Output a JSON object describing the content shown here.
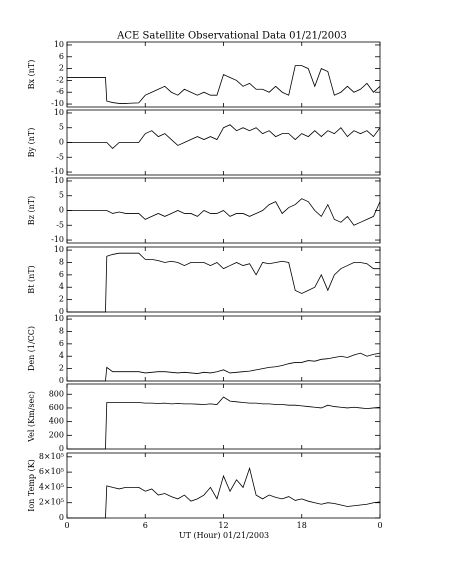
{
  "chart_data": [
    {
      "type": "line",
      "title": "ACE Satellite Observational Data   01/21/2003",
      "ylabel": "Bx (nT)",
      "color": "#000000",
      "ylim": [
        -11,
        11
      ],
      "yticks": [
        -10,
        -6,
        -2,
        2,
        6,
        10
      ],
      "x": [
        0,
        2.95,
        3.05,
        3.5,
        4,
        4.5,
        5,
        5.5,
        6,
        6.5,
        7,
        7.5,
        8,
        8.5,
        9,
        9.5,
        10,
        10.5,
        11,
        11.5,
        12,
        12.5,
        13,
        13.5,
        14,
        14.5,
        15,
        15.5,
        16,
        16.5,
        17,
        17.5,
        18,
        18.5,
        19,
        19.5,
        20,
        20.5,
        21,
        21.5,
        22,
        22.5,
        23,
        23.5,
        24
      ],
      "values": [
        -1,
        -1,
        -9,
        -9.5,
        -9.8,
        -9.8,
        -9.7,
        -9.6,
        -7,
        -6,
        -5,
        -4,
        -6,
        -7,
        -5,
        -6,
        -7,
        -6,
        -7,
        -7,
        0,
        -1,
        -2,
        -4,
        -3,
        -5,
        -5,
        -6,
        -4,
        -6,
        -7,
        3,
        3,
        2,
        -4,
        2,
        1,
        -7,
        -6,
        -4,
        -6,
        -5,
        -3,
        -6,
        -4
      ]
    },
    {
      "type": "line",
      "ylabel": "By (nT)",
      "color": "#000000",
      "ylim": [
        -11,
        11
      ],
      "yticks": [
        -10,
        -5,
        0,
        5,
        10
      ],
      "x": [
        0,
        2.95,
        3.05,
        3.5,
        4,
        4.5,
        5,
        5.5,
        6,
        6.5,
        7,
        7.5,
        8,
        8.5,
        9,
        9.5,
        10,
        10.5,
        11,
        11.5,
        12,
        12.5,
        13,
        13.5,
        14,
        14.5,
        15,
        15.5,
        16,
        16.5,
        17,
        17.5,
        18,
        18.5,
        19,
        19.5,
        20,
        20.5,
        21,
        21.5,
        22,
        22.5,
        23,
        23.5,
        24
      ],
      "values": [
        0,
        0,
        0,
        -2,
        0,
        0,
        0,
        0,
        3,
        4,
        2,
        3,
        1,
        -1,
        0,
        1,
        2,
        1,
        2,
        1,
        5,
        6,
        4,
        5,
        4,
        5,
        3,
        4,
        2,
        3,
        3,
        1,
        3,
        2,
        4,
        2,
        4,
        3,
        5,
        2,
        4,
        3,
        4,
        2,
        5
      ]
    },
    {
      "type": "line",
      "ylabel": "Bz (nT)",
      "color": "#000000",
      "ylim": [
        -11,
        11
      ],
      "yticks": [
        -10,
        -5,
        0,
        5,
        10
      ],
      "x": [
        0,
        2.95,
        3.05,
        3.5,
        4,
        4.5,
        5,
        5.5,
        6,
        6.5,
        7,
        7.5,
        8,
        8.5,
        9,
        9.5,
        10,
        10.5,
        11,
        11.5,
        12,
        12.5,
        13,
        13.5,
        14,
        14.5,
        15,
        15.5,
        16,
        16.5,
        17,
        17.5,
        18,
        18.5,
        19,
        19.5,
        20,
        20.5,
        21,
        21.5,
        22,
        22.5,
        23,
        23.5,
        24
      ],
      "values": [
        0,
        0,
        0,
        -1,
        -0.5,
        -1,
        -1,
        -1,
        -3,
        -2,
        -1,
        -2,
        -1,
        0,
        -1,
        -1,
        -2,
        0,
        -1,
        -1,
        0,
        -2,
        -1,
        -1,
        -2,
        -1,
        0,
        2,
        3,
        -1,
        1,
        2,
        4,
        3,
        0,
        -2,
        2,
        -3,
        -4,
        -2,
        -5,
        -4,
        -3,
        -2,
        3
      ]
    },
    {
      "type": "line",
      "ylabel": "Bt (nT)",
      "color": "#000000",
      "ylim": [
        0,
        10.5
      ],
      "yticks": [
        0,
        2,
        4,
        6,
        8,
        10
      ],
      "x": [
        0,
        2.95,
        3.05,
        3.5,
        4,
        4.5,
        5,
        5.5,
        6,
        6.5,
        7,
        7.5,
        8,
        8.5,
        9,
        9.5,
        10,
        10.5,
        11,
        11.5,
        12,
        12.5,
        13,
        13.5,
        14,
        14.5,
        15,
        15.5,
        16,
        16.5,
        17,
        17.5,
        18,
        18.5,
        19,
        19.5,
        20,
        20.5,
        21,
        21.5,
        22,
        22.5,
        23,
        23.5,
        24
      ],
      "values": [
        0,
        0,
        9,
        9.3,
        9.5,
        9.5,
        9.5,
        9.5,
        8.5,
        8.5,
        8.3,
        8,
        8.2,
        8,
        7.5,
        8,
        8,
        8,
        7.5,
        8,
        7,
        7.5,
        8,
        7.5,
        7.8,
        6,
        8,
        7.8,
        8,
        8.2,
        8,
        3.5,
        3,
        3.5,
        4,
        6,
        3.5,
        6,
        7,
        7.5,
        8,
        8,
        7.8,
        7,
        7
      ]
    },
    {
      "type": "line",
      "ylabel": "Den (1/CC)",
      "color": "#000000",
      "ylim": [
        0,
        10.5
      ],
      "yticks": [
        0,
        2,
        4,
        6,
        8,
        10
      ],
      "x": [
        0,
        2.95,
        3.05,
        3.5,
        4,
        4.5,
        5,
        5.5,
        6,
        6.5,
        7,
        7.5,
        8,
        8.5,
        9,
        9.5,
        10,
        10.5,
        11,
        11.5,
        12,
        12.5,
        13,
        13.5,
        14,
        14.5,
        15,
        15.5,
        16,
        16.5,
        17,
        17.5,
        18,
        18.5,
        19,
        19.5,
        20,
        20.5,
        21,
        21.5,
        22,
        22.5,
        23,
        23.5,
        24
      ],
      "values": [
        0,
        0,
        2.2,
        1.5,
        1.5,
        1.5,
        1.5,
        1.5,
        1.3,
        1.4,
        1.5,
        1.5,
        1.4,
        1.3,
        1.4,
        1.3,
        1.2,
        1.4,
        1.3,
        1.5,
        1.8,
        1.3,
        1.4,
        1.5,
        1.6,
        1.8,
        2,
        2.2,
        2.3,
        2.5,
        2.8,
        3,
        3,
        3.3,
        3.2,
        3.5,
        3.6,
        3.8,
        4,
        3.8,
        4.2,
        4.5,
        4,
        4.3,
        4.5
      ]
    },
    {
      "type": "line",
      "ylabel": "Vel (Km/sec)",
      "color": "#000000",
      "ylim": [
        0,
        950
      ],
      "yticks": [
        0,
        200,
        400,
        600,
        800
      ],
      "x": [
        0,
        2.95,
        3.05,
        3.5,
        4,
        4.5,
        5,
        5.5,
        6,
        6.5,
        7,
        7.5,
        8,
        8.5,
        9,
        9.5,
        10,
        10.5,
        11,
        11.5,
        12,
        12.5,
        13,
        13.5,
        14,
        14.5,
        15,
        15.5,
        16,
        16.5,
        17,
        17.5,
        18,
        18.5,
        19,
        19.5,
        20,
        20.5,
        21,
        21.5,
        22,
        22.5,
        23,
        23.5,
        24
      ],
      "values": [
        0,
        0,
        680,
        680,
        680,
        680,
        680,
        680,
        670,
        670,
        665,
        670,
        660,
        665,
        660,
        660,
        655,
        650,
        660,
        650,
        760,
        700,
        690,
        680,
        670,
        670,
        660,
        660,
        650,
        650,
        640,
        640,
        630,
        620,
        610,
        600,
        640,
        620,
        610,
        600,
        610,
        600,
        590,
        600,
        610
      ]
    },
    {
      "type": "line",
      "ylabel": "Ion Temp (K)",
      "xlabel": "UT (Hour)   01/21/2003",
      "color": "#000000",
      "xlim": [
        0,
        24
      ],
      "xticks": [
        0,
        6,
        12,
        18,
        {
          "value": 24,
          "label": "0"
        }
      ],
      "ylim": [
        0,
        850000
      ],
      "yticks": [
        0,
        {
          "value": 200000,
          "label": "2×10⁵"
        },
        {
          "value": 400000,
          "label": "4×10⁵"
        },
        {
          "value": 600000,
          "label": "6×10⁵"
        },
        {
          "value": 800000,
          "label": "8×10⁵"
        }
      ],
      "x": [
        0,
        2.95,
        3.05,
        3.5,
        4,
        4.5,
        5,
        5.5,
        6,
        6.5,
        7,
        7.5,
        8,
        8.5,
        9,
        9.5,
        10,
        10.5,
        11,
        11.5,
        12,
        12.5,
        13,
        13.5,
        14,
        14.5,
        15,
        15.5,
        16,
        16.5,
        17,
        17.5,
        18,
        18.5,
        19,
        19.5,
        20,
        20.5,
        21,
        21.5,
        22,
        22.5,
        23,
        23.5,
        24
      ],
      "values": [
        0,
        0,
        420000,
        400000,
        380000,
        400000,
        400000,
        400000,
        350000,
        380000,
        300000,
        320000,
        280000,
        250000,
        300000,
        220000,
        250000,
        300000,
        400000,
        250000,
        550000,
        350000,
        500000,
        400000,
        650000,
        300000,
        250000,
        300000,
        270000,
        250000,
        280000,
        230000,
        250000,
        220000,
        200000,
        180000,
        200000,
        190000,
        170000,
        150000,
        160000,
        170000,
        180000,
        200000,
        210000
      ]
    }
  ]
}
